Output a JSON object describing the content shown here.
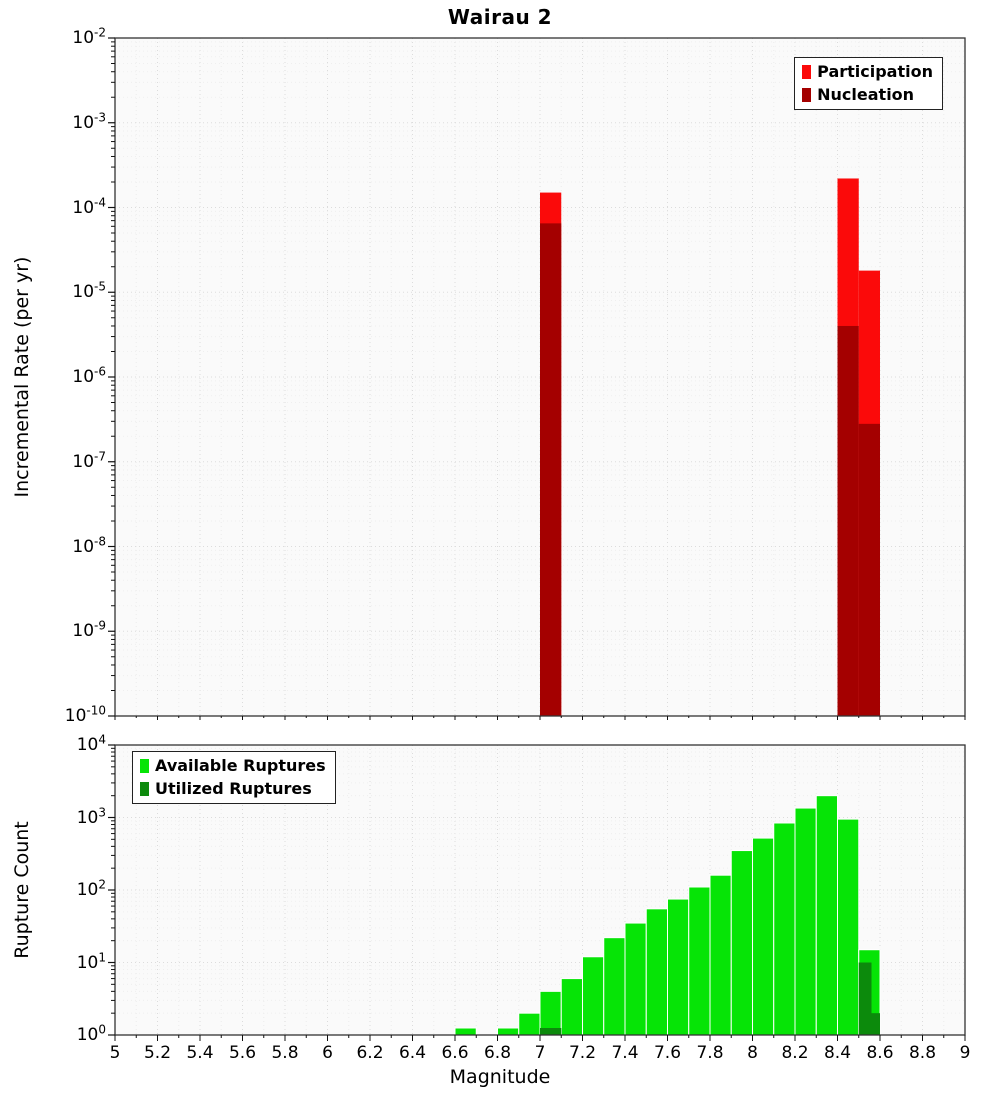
{
  "page_title": "Wairau 2",
  "chart_data": [
    {
      "type": "bar",
      "title": "Wairau 2",
      "ylabel": "Incremental Rate (per yr)",
      "xlabel": "",
      "yscale": "log",
      "xlim": [
        5,
        9
      ],
      "ylim": [
        1e-10,
        0.01
      ],
      "ytick_exponents": [
        -2,
        -3,
        -4,
        -5,
        -6,
        -7,
        -8,
        -9,
        -10
      ],
      "grid": true,
      "legend_position": "top-right",
      "legend": [
        {
          "label": "Participation",
          "color": "#fb0a0a"
        },
        {
          "label": "Nucleation",
          "color": "#a40000"
        }
      ],
      "series": [
        {
          "name": "Participation",
          "color": "#fb0a0a",
          "bars": [
            {
              "x0": 7.0,
              "x1": 7.1,
              "y": 0.00015
            },
            {
              "x0": 8.4,
              "x1": 8.5,
              "y": 0.00022
            },
            {
              "x0": 8.5,
              "x1": 8.6,
              "y": 1.8e-05
            }
          ]
        },
        {
          "name": "Nucleation",
          "color": "#a40000",
          "bars": [
            {
              "x0": 7.0,
              "x1": 7.1,
              "y": 6.5e-05
            },
            {
              "x0": 8.4,
              "x1": 8.5,
              "y": 4e-06
            },
            {
              "x0": 8.5,
              "x1": 8.6,
              "y": 2.8e-07
            }
          ]
        }
      ]
    },
    {
      "type": "bar",
      "title": "",
      "ylabel": "Rupture Count",
      "xlabel": "Magnitude",
      "yscale": "log",
      "xlim": [
        5,
        9
      ],
      "ylim": [
        1,
        10000
      ],
      "ytick_exponents": [
        4,
        3,
        2,
        1,
        0
      ],
      "xtick_labels": [
        "5",
        "5.2",
        "5.4",
        "5.6",
        "5.8",
        "6",
        "6.2",
        "6.4",
        "6.6",
        "6.8",
        "7",
        "7.2",
        "7.4",
        "7.6",
        "7.8",
        "8",
        "8.2",
        "8.4",
        "8.6",
        "8.8",
        "9"
      ],
      "grid": true,
      "legend_position": "top-left",
      "legend": [
        {
          "label": "Available Ruptures",
          "color": "#06e406"
        },
        {
          "label": "Utilized Ruptures",
          "color": "#0c8a0c"
        }
      ],
      "series": [
        {
          "name": "Available Ruptures",
          "color": "#06e406",
          "stroke": "#ffffff",
          "bars": [
            {
              "x0": 6.6,
              "x1": 6.7,
              "y": 1
            },
            {
              "x0": 6.8,
              "x1": 6.9,
              "y": 1
            },
            {
              "x0": 6.9,
              "x1": 7.0,
              "y": 2
            },
            {
              "x0": 7.0,
              "x1": 7.1,
              "y": 4
            },
            {
              "x0": 7.1,
              "x1": 7.2,
              "y": 6
            },
            {
              "x0": 7.2,
              "x1": 7.3,
              "y": 12
            },
            {
              "x0": 7.3,
              "x1": 7.4,
              "y": 22
            },
            {
              "x0": 7.4,
              "x1": 7.5,
              "y": 35
            },
            {
              "x0": 7.5,
              "x1": 7.6,
              "y": 55
            },
            {
              "x0": 7.6,
              "x1": 7.7,
              "y": 75
            },
            {
              "x0": 7.7,
              "x1": 7.8,
              "y": 110
            },
            {
              "x0": 7.8,
              "x1": 7.9,
              "y": 160
            },
            {
              "x0": 7.9,
              "x1": 8.0,
              "y": 350
            },
            {
              "x0": 8.0,
              "x1": 8.1,
              "y": 520
            },
            {
              "x0": 8.1,
              "x1": 8.2,
              "y": 840
            },
            {
              "x0": 8.2,
              "x1": 8.3,
              "y": 1350
            },
            {
              "x0": 8.3,
              "x1": 8.4,
              "y": 2000
            },
            {
              "x0": 8.4,
              "x1": 8.5,
              "y": 950
            },
            {
              "x0": 8.5,
              "x1": 8.6,
              "y": 15
            }
          ]
        },
        {
          "name": "Utilized Ruptures",
          "color": "#0c8a0c",
          "bars": [
            {
              "x0": 7.0,
              "x1": 7.1,
              "y": 1
            },
            {
              "x0": 8.5,
              "x1": 8.56,
              "y": 10
            },
            {
              "x0": 8.56,
              "x1": 8.6,
              "y": 2
            }
          ]
        }
      ]
    }
  ]
}
